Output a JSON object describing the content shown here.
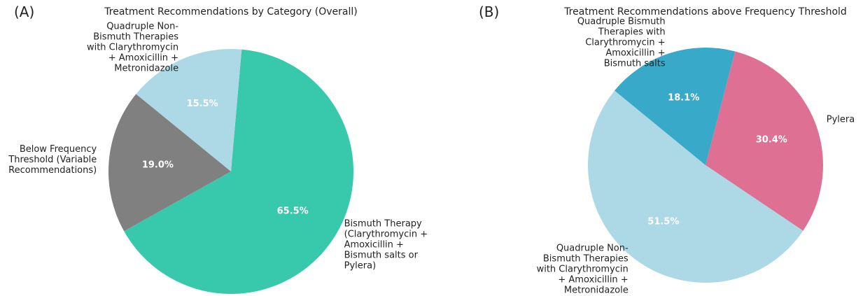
{
  "chart_data": [
    {
      "type": "pie",
      "panel_label": "(A)",
      "title": "Treatment Recommendations by Category (Overall)",
      "categories": [
        "Bismuth Therapy\n(Clarythromycin +\nAmoxicillin +\nBismuth salts or\nPylera)",
        "Below Frequency\nThreshold (Variable\nRecommendations)",
        "Quadruple Non-\nBismuth Therapies\nwith Clarythromycin\n+ Amoxicillin +\nMetronidazole"
      ],
      "values": [
        65.5,
        19.0,
        15.5
      ],
      "value_labels": [
        "65.5%",
        "19.0%",
        "15.5%"
      ],
      "colors": [
        "#38c9ad",
        "#808080",
        "#add8e6"
      ],
      "startangle": 85,
      "counterclock": false
    },
    {
      "type": "pie",
      "panel_label": "(B)",
      "title": "Treatment Recommendations above Frequency Threshold",
      "categories": [
        "Pylera",
        "Quadruple Non-\nBismuth Therapies\nwith Clarythromycin\n+ Amoxicillin +\nMetronidazole",
        "Quadruple Bismuth\nTherapies with\nClarythromycin +\nAmoxicillin +\nBismuth salts"
      ],
      "values": [
        30.4,
        51.5,
        18.1
      ],
      "value_labels": [
        "30.4%",
        "51.5%",
        "18.1%"
      ],
      "colors": [
        "#de7093",
        "#add8e6",
        "#38a9c9"
      ],
      "startangle": 75.5,
      "counterclock": false
    }
  ]
}
